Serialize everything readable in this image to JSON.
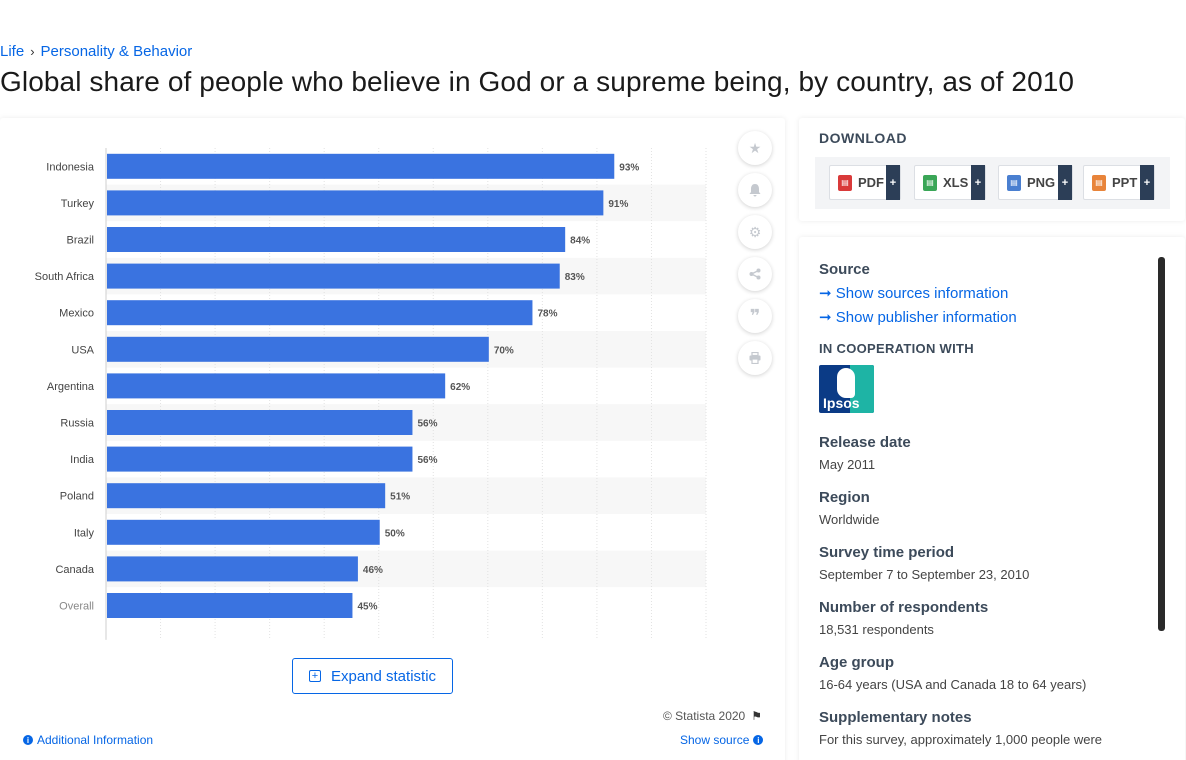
{
  "breadcrumb": {
    "items": [
      "Life",
      "Personality & Behavior"
    ]
  },
  "title": "Global share of people who believe in God or a supreme being, by country, as of 2010",
  "chart_data": {
    "type": "bar",
    "orientation": "horizontal",
    "categories": [
      "Indonesia",
      "Turkey",
      "Brazil",
      "South Africa",
      "Mexico",
      "USA",
      "Argentina",
      "Russia",
      "India",
      "Poland",
      "Italy",
      "Canada",
      "Overall"
    ],
    "values": [
      93,
      91,
      84,
      83,
      78,
      70,
      62,
      56,
      56,
      51,
      50,
      46,
      45
    ],
    "value_labels": [
      "93%",
      "91%",
      "84%",
      "83%",
      "78%",
      "70%",
      "62%",
      "56%",
      "56%",
      "51%",
      "50%",
      "46%",
      "45%"
    ],
    "xlim": [
      0,
      110
    ],
    "grid": true,
    "bar_color": "#3a73e0"
  },
  "toolbar": {
    "icons": [
      "star-icon",
      "bell-icon",
      "gear-icon",
      "share-icon",
      "quote-icon",
      "print-icon"
    ]
  },
  "expand_label": "Expand statistic",
  "copyright": "© Statista 2020",
  "additional_info": "Additional Information",
  "show_source": "Show source",
  "download": {
    "title": "DOWNLOAD",
    "buttons": [
      {
        "label": "PDF",
        "color": "#d93a3a"
      },
      {
        "label": "XLS",
        "color": "#3aa657"
      },
      {
        "label": "PNG",
        "color": "#4a7fd0"
      },
      {
        "label": "PPT",
        "color": "#e8843a"
      }
    ],
    "plus": "+"
  },
  "source": {
    "heading": "Source",
    "link_sources": "Show sources information",
    "link_publisher": "Show publisher information",
    "coop_heading": "IN COOPERATION WITH",
    "coop_logo_text": "Ipsos",
    "fields": [
      {
        "label": "Release date",
        "value": "May 2011"
      },
      {
        "label": "Region",
        "value": "Worldwide"
      },
      {
        "label": "Survey time period",
        "value": "September 7 to September 23, 2010"
      },
      {
        "label": "Number of respondents",
        "value": "18,531 respondents"
      },
      {
        "label": "Age group",
        "value": "16-64 years (USA and Canada 18 to 64 years)"
      },
      {
        "label": "Supplementary notes",
        "value": "For this survey, approximately 1,000 people were"
      }
    ]
  }
}
